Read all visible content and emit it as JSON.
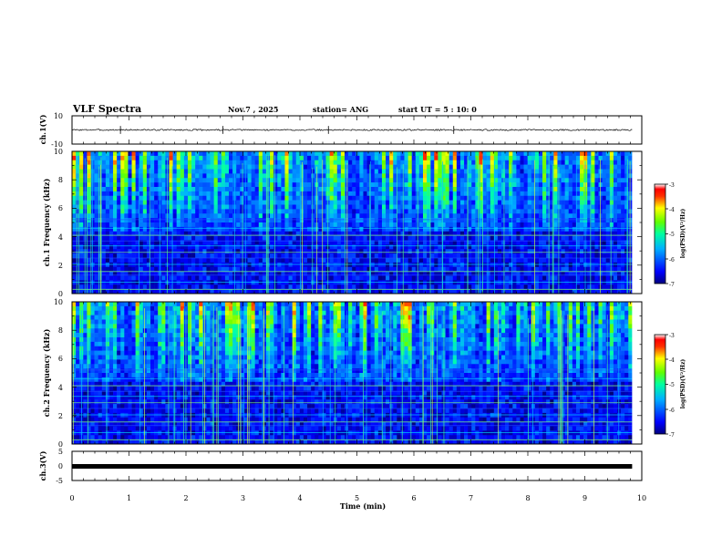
{
  "header": {
    "title": "VLF Spectra",
    "date": "Nov.7 , 2025",
    "station": "station= ANG",
    "start": "start UT = 5 : 10: 0"
  },
  "chart_data": [
    {
      "type": "line",
      "name": "ch1-voltage",
      "ylabel": "ch.1(V)",
      "ylim": [
        -10,
        10
      ],
      "yticks": [
        "10",
        "-10"
      ],
      "baseline": 0,
      "noise_amplitude": 0.5,
      "spikes_at_min": [
        0.85,
        2.65,
        4.5,
        6.7
      ],
      "xlim": [
        0,
        10
      ],
      "data_extent_min": 9.83
    },
    {
      "type": "heatmap",
      "name": "ch1-spectrogram",
      "ylabel": "ch.1 Frequency (kHz)",
      "ylim": [
        0,
        10
      ],
      "yticks": [
        "0",
        "2",
        "4",
        "6",
        "8",
        "10"
      ],
      "xlim": [
        0,
        10
      ],
      "data_extent_min": 9.83,
      "colorbar": {
        "label": "log(PSD)(V²/Hz)",
        "range": [
          -7,
          -3
        ],
        "ticks": [
          "-3",
          "-4",
          "-5",
          "-6",
          "-7"
        ]
      },
      "seed": 7
    },
    {
      "type": "heatmap",
      "name": "ch2-spectrogram",
      "ylabel": "ch.2 Frequency (kHz)",
      "ylim": [
        0,
        10
      ],
      "yticks": [
        "0",
        "2",
        "4",
        "6",
        "8",
        "10"
      ],
      "xlim": [
        0,
        10
      ],
      "data_extent_min": 9.83,
      "colorbar": {
        "label": "log(PSD)(V²/Hz)",
        "range": [
          -7,
          -3
        ],
        "ticks": [
          "-3",
          "-4",
          "-5",
          "-6",
          "-7"
        ]
      },
      "seed": 13
    },
    {
      "type": "line",
      "name": "ch3-voltage",
      "ylabel": "ch.3(V)",
      "ylim": [
        -5,
        5
      ],
      "yticks": [
        "5",
        "0",
        "-5"
      ],
      "baseline": -0.3,
      "xlim": [
        0,
        10
      ],
      "data_extent_min": 9.83
    }
  ],
  "xaxis": {
    "label": "Time (min)",
    "ticks": [
      "0",
      "1",
      "2",
      "3",
      "4",
      "5",
      "6",
      "7",
      "8",
      "9",
      "10"
    ]
  }
}
